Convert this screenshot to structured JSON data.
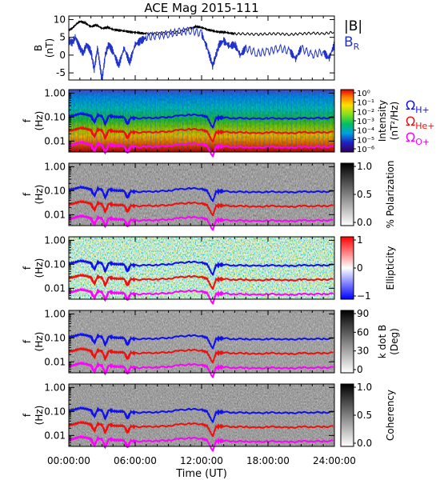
{
  "chart_data": {
    "title": "ACE Mag 2015-111",
    "type": "line",
    "time_axis": {
      "label": "Time (UT)",
      "ticks": [
        "00:00:00",
        "06:00:00",
        "12:00:00",
        "18:00:00",
        "24:00:00"
      ],
      "range_hours": [
        0,
        24
      ]
    },
    "panels": [
      {
        "id": "field",
        "ylabel_1": "B",
        "ylabel_2": "(nT)",
        "ylim": [
          -7,
          11
        ],
        "yticks": [
          {
            "v": 10,
            "t": "10"
          },
          {
            "v": 5,
            "t": "5"
          },
          {
            "v": 0,
            "t": "0"
          },
          {
            "v": -5,
            "t": "-5"
          }
        ],
        "series": [
          {
            "name": "|B|",
            "color": "#000000",
            "x": [
              0,
              0.3,
              0.6,
              1.0,
              1.5,
              2.0,
              2.5,
              3.0,
              3.5,
              4.0,
              4.5,
              5.0,
              5.5,
              6.0,
              6.5,
              7.0,
              8.0,
              9.0,
              10.0,
              11.0,
              11.5,
              12.0,
              12.5,
              13.0,
              13.5,
              14.0,
              14.5,
              15.0,
              16.0,
              17.0,
              18.0,
              19.0,
              20.0,
              21.0,
              22.0,
              23.0,
              24.0
            ],
            "y": [
              7.0,
              7.5,
              8.5,
              9.5,
              9.0,
              8.0,
              8.5,
              7.5,
              7.8,
              7.2,
              7.0,
              6.8,
              6.5,
              6.4,
              6.2,
              6.0,
              6.0,
              6.2,
              6.5,
              7.5,
              8.0,
              7.8,
              7.2,
              6.8,
              6.5,
              6.5,
              6.2,
              6.0,
              6.0,
              5.8,
              6.0,
              6.0,
              5.8,
              6.0,
              6.2,
              6.0,
              6.5
            ]
          },
          {
            "name": "B",
            "name_sub": "R",
            "color": "#2233cc",
            "x": [
              0,
              0.3,
              0.6,
              1.0,
              1.3,
              1.6,
              2.0,
              2.3,
              2.6,
              3.0,
              3.3,
              3.6,
              4.0,
              4.5,
              5.0,
              5.5,
              6.0,
              6.5,
              7.0,
              8.0,
              9.0,
              10.0,
              11.0,
              12.0,
              12.5,
              13.0,
              13.3,
              13.6,
              14.0,
              14.5,
              15.0,
              15.5,
              16.0,
              17.0,
              18.0,
              19.0,
              20.0,
              20.5,
              21.0,
              22.0,
              23.0,
              23.5,
              24.0
            ],
            "y": [
              4.0,
              3.5,
              5.0,
              2.0,
              0.5,
              3.0,
              1.0,
              -4.0,
              2.0,
              -7.0,
              0.0,
              3.0,
              1.0,
              -3.0,
              2.0,
              -2.0,
              3.0,
              4.0,
              5.0,
              5.5,
              6.0,
              6.5,
              7.0,
              6.0,
              2.0,
              -3.0,
              0.0,
              3.0,
              4.0,
              2.5,
              3.0,
              0.0,
              2.0,
              0.5,
              1.0,
              2.0,
              1.0,
              -1.0,
              2.0,
              0.0,
              1.0,
              -1.0,
              3.0
            ]
          }
        ]
      },
      {
        "id": "intensity",
        "ylabel_1": "f",
        "ylabel_2": "(Hz)",
        "colorbar_label_1": "Intensity",
        "colorbar_label_2": "(nT²/Hz)",
        "colorbar_ticks": [
          "10⁰",
          "10⁻¹",
          "10⁻²",
          "10⁻³",
          "10⁻⁴",
          "10⁻⁵",
          "10⁻⁶"
        ],
        "colormap": "rainbow"
      },
      {
        "id": "polarization",
        "ylabel_1": "f",
        "ylabel_2": "(Hz)",
        "colorbar_label_1": "% Polarization",
        "colorbar_label_2": "",
        "colorbar_ticks": [
          "1.0",
          "0.5",
          "0.0"
        ],
        "colormap": "gray"
      },
      {
        "id": "ellipticity",
        "ylabel_1": "f",
        "ylabel_2": "(Hz)",
        "colorbar_label_1": "Ellipticity",
        "colorbar_label_2": "",
        "colorbar_ticks": [
          "1",
          "0",
          "−1"
        ],
        "colormap": "bwr"
      },
      {
        "id": "kdotb",
        "ylabel_1": "f",
        "ylabel_2": "(Hz)",
        "colorbar_label_1": "k dot B",
        "colorbar_label_2": "(Deg)",
        "colorbar_ticks": [
          "90",
          "60",
          "30",
          "0"
        ],
        "colormap": "gray"
      },
      {
        "id": "coherency",
        "ylabel_1": "f",
        "ylabel_2": "(Hz)",
        "colorbar_label_1": "Coherency",
        "colorbar_label_2": "",
        "colorbar_ticks": [
          "1.0",
          "0.5",
          "0.0"
        ],
        "colormap": "gray"
      }
    ],
    "freq_axis": {
      "scale": "log",
      "ylim": [
        0.0035,
        1.4
      ],
      "ticks": [
        {
          "v": 1.0,
          "t": "1.00"
        },
        {
          "v": 0.1,
          "t": "0.10"
        },
        {
          "v": 0.01,
          "t": "0.01"
        }
      ]
    },
    "gyro_legend": [
      {
        "symbol": "Ω",
        "sub": "H+",
        "color": "#1010ee"
      },
      {
        "symbol": "Ω",
        "sub": "He+",
        "color": "#ee1010"
      },
      {
        "symbol": "Ω",
        "sub": "O+",
        "color": "#ff00ff"
      }
    ],
    "gyro_lines": {
      "x": [
        0,
        0.5,
        1.0,
        1.5,
        2.0,
        2.3,
        2.6,
        3.0,
        3.3,
        3.6,
        4.0,
        4.5,
        5.0,
        5.3,
        5.6,
        6.0,
        7.0,
        8.0,
        9.0,
        10.0,
        11.0,
        12.0,
        12.5,
        13.0,
        13.3,
        13.6,
        14.0,
        15.0,
        16.0,
        17.0,
        18.0,
        19.0,
        20.0,
        21.0,
        22.0,
        23.0,
        24.0
      ],
      "H+": [
        0.105,
        0.12,
        0.14,
        0.13,
        0.115,
        0.06,
        0.12,
        0.11,
        0.05,
        0.115,
        0.105,
        0.1,
        0.1,
        0.05,
        0.095,
        0.09,
        0.09,
        0.095,
        0.1,
        0.115,
        0.125,
        0.12,
        0.1,
        0.035,
        0.09,
        0.095,
        0.095,
        0.09,
        0.09,
        0.085,
        0.09,
        0.09,
        0.085,
        0.09,
        0.092,
        0.09,
        0.095
      ],
      "He+": [
        0.026,
        0.03,
        0.035,
        0.033,
        0.029,
        0.015,
        0.03,
        0.028,
        0.013,
        0.029,
        0.026,
        0.025,
        0.025,
        0.013,
        0.024,
        0.023,
        0.023,
        0.024,
        0.025,
        0.029,
        0.031,
        0.03,
        0.025,
        0.009,
        0.023,
        0.024,
        0.024,
        0.023,
        0.023,
        0.021,
        0.023,
        0.023,
        0.021,
        0.023,
        0.023,
        0.023,
        0.024
      ],
      "O+": [
        0.0066,
        0.0075,
        0.0088,
        0.0082,
        0.0072,
        0.0038,
        0.0075,
        0.007,
        0.0032,
        0.0072,
        0.0066,
        0.0063,
        0.0063,
        0.0032,
        0.006,
        0.0057,
        0.0057,
        0.006,
        0.0063,
        0.0072,
        0.0078,
        0.0075,
        0.0063,
        0.0022,
        0.0057,
        0.006,
        0.006,
        0.0057,
        0.0057,
        0.0053,
        0.0057,
        0.0057,
        0.0053,
        0.0057,
        0.0058,
        0.0057,
        0.006
      ]
    }
  }
}
